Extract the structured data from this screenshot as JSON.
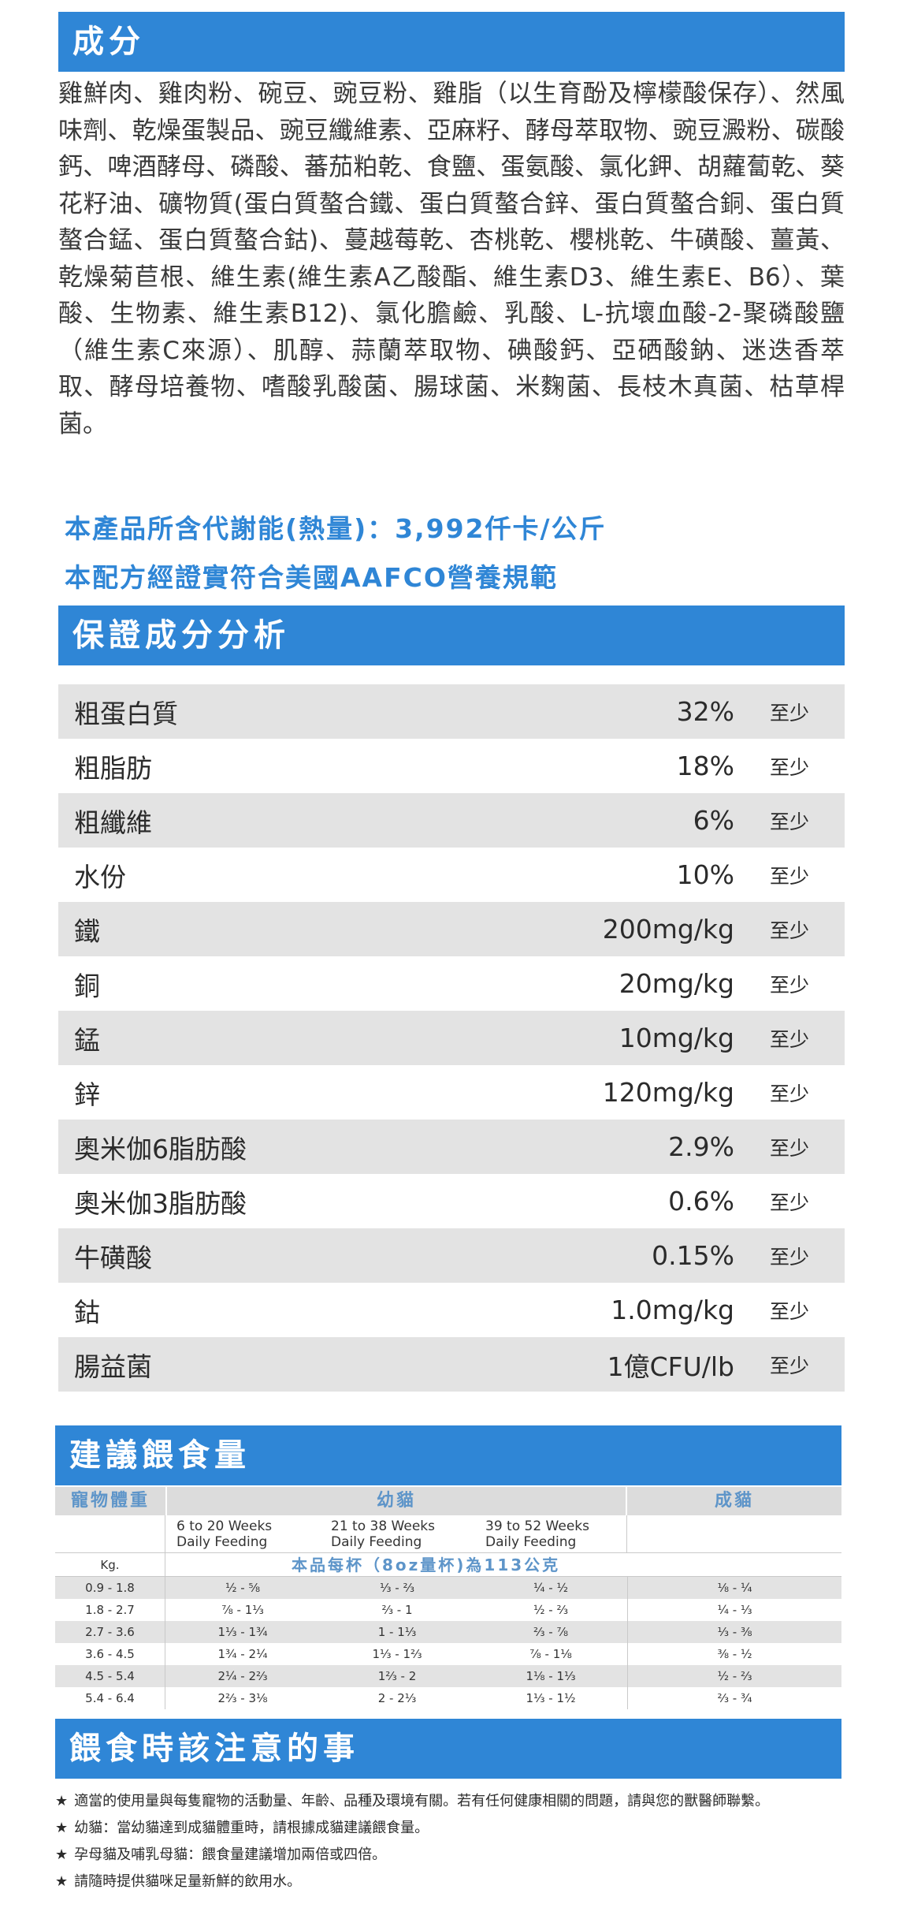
{
  "ingredients": {
    "title": "成分",
    "text": "雞鮮肉、雞肉粉、碗豆、豌豆粉、雞脂（以生育酚及檸檬酸保存）、然風味劑、乾燥蛋製品、豌豆纖維素、亞麻籽、酵母萃取物、豌豆澱粉、碳酸鈣、啤酒酵母、磷酸、蕃茄粕乾、食鹽、蛋氨酸、氯化鉀、胡蘿蔔乾、葵花籽油、礦物質(蛋白質螯合鐵、蛋白質螯合鋅、蛋白質螯合銅、蛋白質螯合錳、蛋白質螯合鈷)、蔓越莓乾、杏桃乾、櫻桃乾、牛磺酸、薑黃、乾燥菊苣根、維生素(維生素A乙酸酯、維生素D3、維生素E、B6）、葉酸、生物素、維生素B12)、氯化膽鹼、乳酸、L-抗壞血酸-2-聚磷酸鹽（維生素C來源）、肌醇、蒜蘭萃取物、碘酸鈣、亞硒酸鈉、迷迭香萃取、酵母培養物、嗜酸乳酸菌、腸球菌、米麴菌、長枝木真菌、枯草桿菌。"
  },
  "energy": {
    "line1": "本產品所含代謝能(熱量)：3,992仟卡/公斤",
    "line2": "本配方經證實符合美國AAFCO營養規範"
  },
  "analysis": {
    "title": "保證成分分析",
    "min_label": "至少",
    "rows": [
      {
        "name": "粗蛋白質",
        "value": "32%"
      },
      {
        "name": "粗脂肪",
        "value": "18%"
      },
      {
        "name": "粗纖維",
        "value": "6%"
      },
      {
        "name": "水份",
        "value": "10%"
      },
      {
        "name": "鐵",
        "value": "200mg/kg"
      },
      {
        "name": "銅",
        "value": "20mg/kg"
      },
      {
        "name": "錳",
        "value": "10mg/kg"
      },
      {
        "name": "鋅",
        "value": "120mg/kg"
      },
      {
        "name": "奧米伽6脂肪酸",
        "value": "2.9%"
      },
      {
        "name": "奧米伽3脂肪酸",
        "value": "0.6%"
      },
      {
        "name": "牛磺酸",
        "value": "0.15%"
      },
      {
        "name": "鈷",
        "value": "1.0mg/kg"
      },
      {
        "name": "腸益菌",
        "value": "1億CFU/lb"
      }
    ]
  },
  "feeding": {
    "title": "建議餵食量",
    "col_weight": "寵物體重",
    "col_kitten": "幼貓",
    "col_adult": "成貓",
    "kitten_periods": [
      {
        "weeks": "6 to 20 Weeks",
        "label": "Daily Feeding"
      },
      {
        "weeks": "21 to 38 Weeks",
        "label": "Daily Feeding"
      },
      {
        "weeks": "39 to 52 Weeks",
        "label": "Daily Feeding"
      }
    ],
    "unit": "Kg.",
    "cup_note": "本品每杯（8oz量杯)為113公克",
    "rows": [
      {
        "weight": "0.9 - 1.8",
        "k1": "½ - ⅝",
        "k2": "⅓ - ⅔",
        "k3": "¼ - ½",
        "adult": "⅛ - ¼"
      },
      {
        "weight": "1.8 - 2.7",
        "k1": "⅞ - 1⅓",
        "k2": "⅔ - 1",
        "k3": "½ - ⅔",
        "adult": "¼ - ⅓"
      },
      {
        "weight": "2.7 - 3.6",
        "k1": "1⅓ - 1¾",
        "k2": "1 - 1⅓",
        "k3": "⅔ - ⅞",
        "adult": "⅓ - ⅜"
      },
      {
        "weight": "3.6 - 4.5",
        "k1": "1¾ - 2¼",
        "k2": "1⅓ - 1⅔",
        "k3": "⅞ - 1⅛",
        "adult": "⅜ - ½"
      },
      {
        "weight": "4.5 - 5.4",
        "k1": "2¼ - 2⅔",
        "k2": "1⅔ - 2",
        "k3": "1⅛ - 1⅓",
        "adult": "½ - ⅔"
      },
      {
        "weight": "5.4 - 6.4",
        "k1": "2⅔ - 3⅛",
        "k2": "2 - 2⅓",
        "k3": "1⅓ - 1½",
        "adult": "⅔ - ¾"
      }
    ]
  },
  "notes": {
    "title": "餵食時該注意的事",
    "star": "★",
    "items": [
      "適當的使用量與每隻寵物的活動量、年齡、品種及環境有關。若有任何健康相關的問題，請與您的獸醫師聯繫。",
      "幼貓：當幼貓達到成貓體重時，請根據成貓建議餵食量。",
      "孕母貓及哺乳母貓：餵食量建議增加兩倍或四倍。",
      "請隨時提供貓咪足量新鮮的飲用水。"
    ]
  }
}
